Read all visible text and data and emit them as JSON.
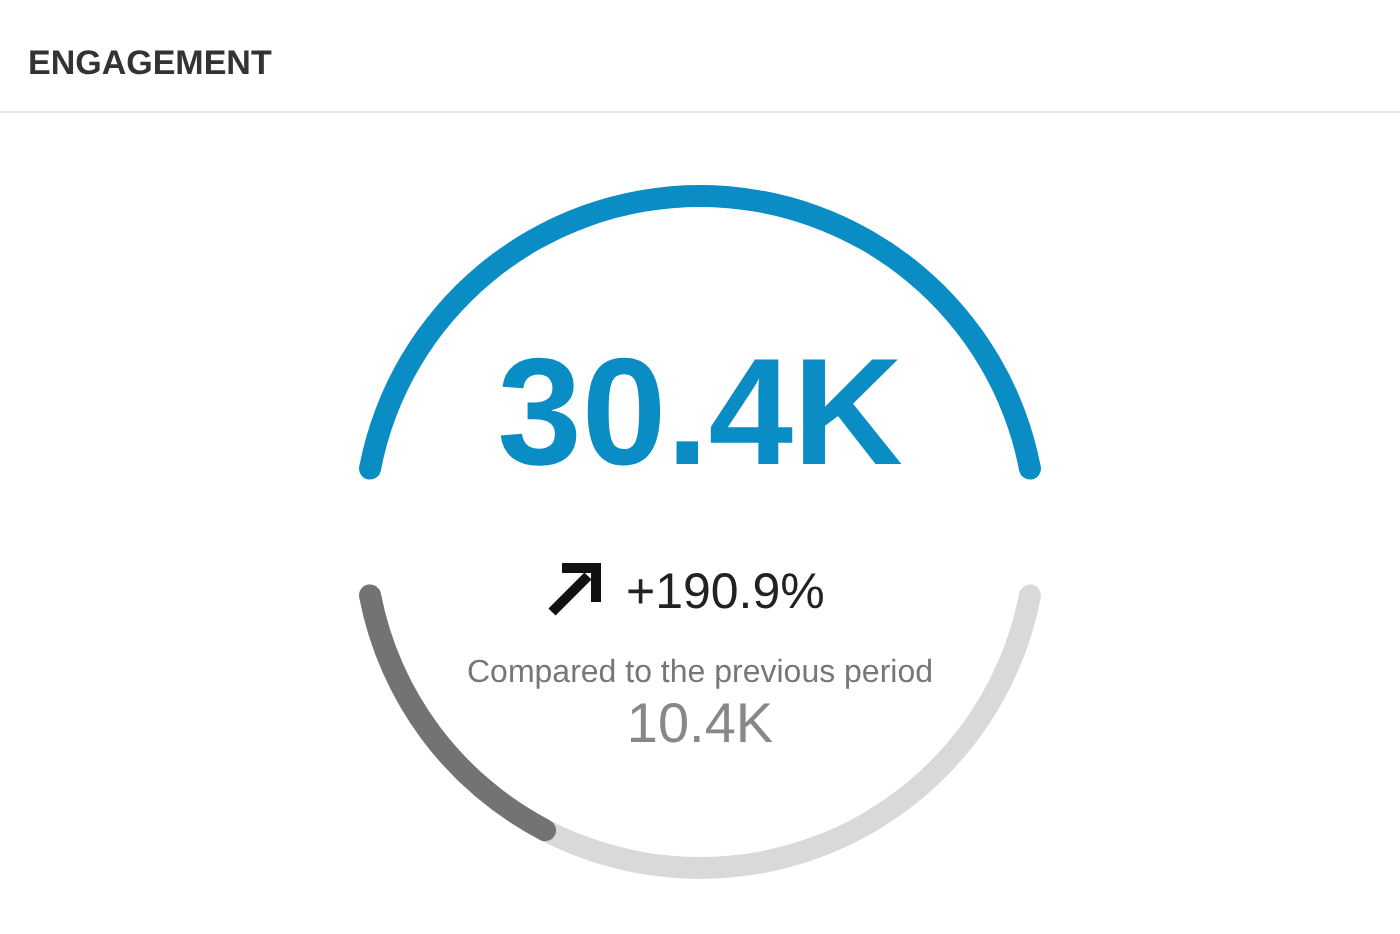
{
  "chart_data": {
    "type": "other",
    "title": "ENGAGEMENT",
    "values": [
      30.4,
      10.4
    ],
    "value_labels": [
      "30.4K",
      "10.4K"
    ],
    "colors": [
      "#0a8cc4",
      "#737373"
    ],
    "annotations": [
      "+190.9%",
      "Compared to the previous period"
    ]
  }
}
